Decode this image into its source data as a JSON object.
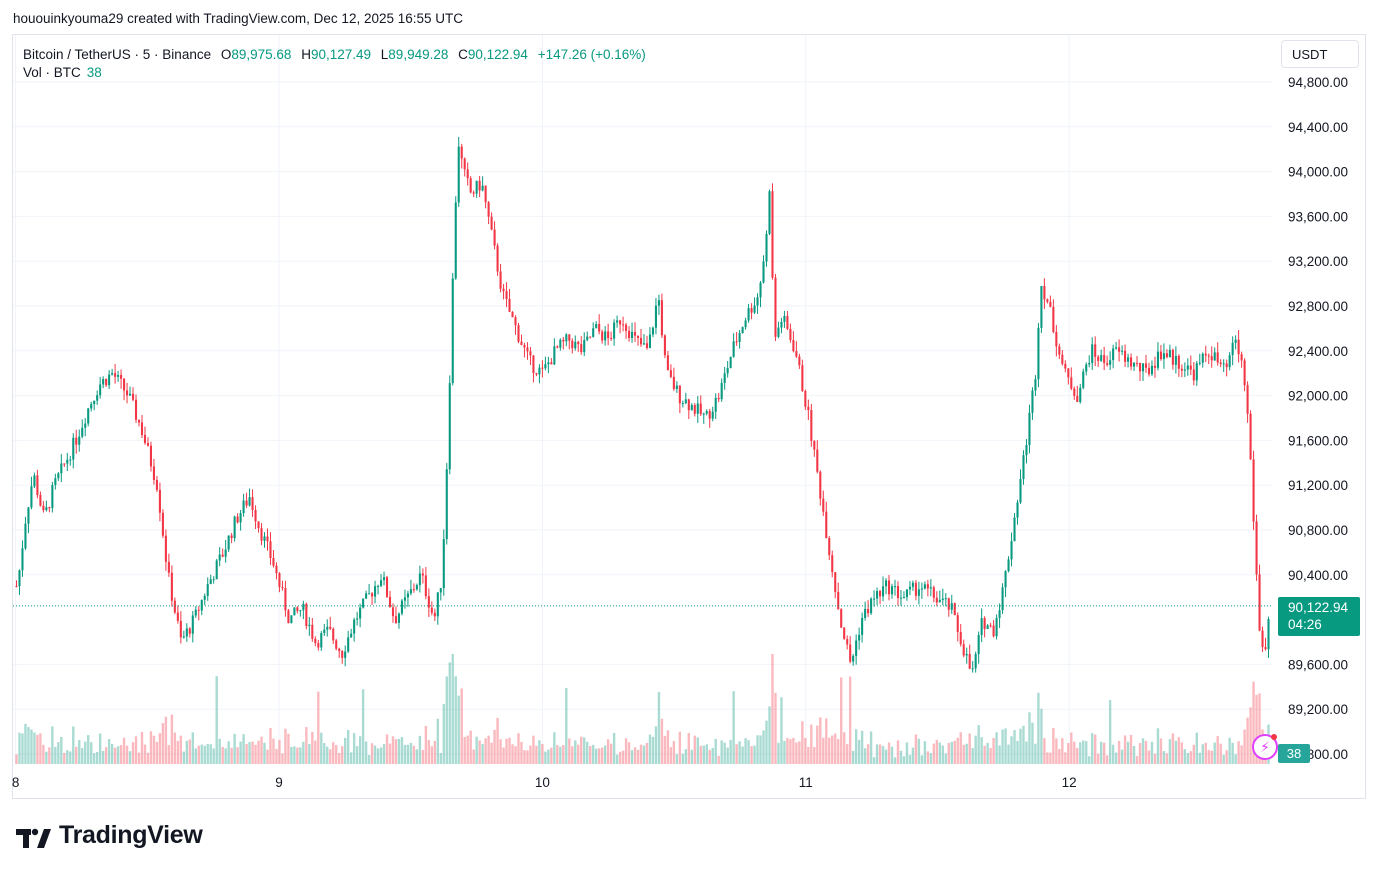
{
  "attribution": "hououinkyouma29 created with TradingView.com, Dec 12, 2025 16:55 UTC",
  "legend": {
    "symbol": "Bitcoin / TetherUS · 5 · Binance",
    "open_label": "O",
    "open": "89,975.68",
    "high_label": "H",
    "high": "90,127.49",
    "low_label": "L",
    "low": "89,949.28",
    "close_label": "C",
    "close": "90,122.94",
    "change": "+147.26 (+0.16%)"
  },
  "volume": {
    "label": "Vol · BTC",
    "value": "38"
  },
  "currency": "USDT",
  "last_price": {
    "price": "90,122.94",
    "countdown": "04:26"
  },
  "brand": "TradingView",
  "colors": {
    "up": "#089981",
    "down": "#f23645",
    "grid": "#f0f3fa",
    "text": "#131722"
  },
  "icons": {
    "alert": "lightning-bolt-icon",
    "logo": "tradingview-logo-icon"
  },
  "chart_data": {
    "type": "candlestick",
    "ylim": [
      88800,
      95000
    ],
    "y_ticks": [
      {
        "value": 94800,
        "label": "94,800.00"
      },
      {
        "value": 94400,
        "label": "94,400.00"
      },
      {
        "value": 94000,
        "label": "94,000.00"
      },
      {
        "value": 93600,
        "label": "93,600.00"
      },
      {
        "value": 93200,
        "label": "93,200.00"
      },
      {
        "value": 92800,
        "label": "92,800.00"
      },
      {
        "value": 92400,
        "label": "92,400.00"
      },
      {
        "value": 92000,
        "label": "92,000.00"
      },
      {
        "value": 91600,
        "label": "91,600.00"
      },
      {
        "value": 91200,
        "label": "91,200.00"
      },
      {
        "value": 90800,
        "label": "90,800.00"
      },
      {
        "value": 90400,
        "label": "90,400.00"
      },
      {
        "value": 89600,
        "label": "89,600.00"
      },
      {
        "value": 89200,
        "label": "89,200.00"
      },
      {
        "value": 88800,
        "label": "88,800.00"
      }
    ],
    "x_ticks": [
      {
        "day": 8,
        "label": "8"
      },
      {
        "day": 9,
        "label": "9"
      },
      {
        "day": 10,
        "label": "10"
      },
      {
        "day": 11,
        "label": "11"
      },
      {
        "day": 12,
        "label": "12"
      }
    ],
    "x_range_days": [
      7.99,
      12.77
    ],
    "current_price": 90122.94,
    "path": [
      [
        8.0,
        90300
      ],
      [
        8.03,
        90900
      ],
      [
        8.06,
        91300
      ],
      [
        8.1,
        90900
      ],
      [
        8.14,
        91200
      ],
      [
        8.18,
        91400
      ],
      [
        8.22,
        91600
      ],
      [
        8.27,
        91900
      ],
      [
        8.31,
        92100
      ],
      [
        8.36,
        92200
      ],
      [
        8.42,
        92000
      ],
      [
        8.47,
        91700
      ],
      [
        8.53,
        91200
      ],
      [
        8.57,
        90400
      ],
      [
        8.62,
        89800
      ],
      [
        8.67,
        90000
      ],
      [
        8.72,
        90300
      ],
      [
        8.78,
        90600
      ],
      [
        8.83,
        90900
      ],
      [
        8.88,
        91100
      ],
      [
        8.92,
        90800
      ],
      [
        8.97,
        90500
      ],
      [
        9.03,
        90000
      ],
      [
        9.08,
        90100
      ],
      [
        9.13,
        89800
      ],
      [
        9.18,
        89900
      ],
      [
        9.23,
        89700
      ],
      [
        9.28,
        90000
      ],
      [
        9.33,
        90200
      ],
      [
        9.38,
        90400
      ],
      [
        9.43,
        90000
      ],
      [
        9.48,
        90200
      ],
      [
        9.53,
        90400
      ],
      [
        9.58,
        90000
      ],
      [
        9.61,
        90400
      ],
      [
        9.63,
        91500
      ],
      [
        9.65,
        93000
      ],
      [
        9.67,
        94300
      ],
      [
        9.69,
        94000
      ],
      [
        9.72,
        93800
      ],
      [
        9.76,
        93900
      ],
      [
        9.8,
        93400
      ],
      [
        9.84,
        92900
      ],
      [
        9.89,
        92600
      ],
      [
        9.94,
        92300
      ],
      [
        9.99,
        92200
      ],
      [
        10.04,
        92400
      ],
      [
        10.09,
        92500
      ],
      [
        10.14,
        92400
      ],
      [
        10.19,
        92600
      ],
      [
        10.24,
        92500
      ],
      [
        10.29,
        92700
      ],
      [
        10.34,
        92500
      ],
      [
        10.39,
        92400
      ],
      [
        10.43,
        92900
      ],
      [
        10.46,
        92200
      ],
      [
        10.51,
        92000
      ],
      [
        10.56,
        91900
      ],
      [
        10.61,
        91800
      ],
      [
        10.66,
        92000
      ],
      [
        10.71,
        92400
      ],
      [
        10.76,
        92700
      ],
      [
        10.81,
        92900
      ],
      [
        10.84,
        93400
      ],
      [
        10.85,
        94000
      ],
      [
        10.87,
        92500
      ],
      [
        10.9,
        92700
      ],
      [
        10.95,
        92400
      ],
      [
        11.0,
        91800
      ],
      [
        11.04,
        91200
      ],
      [
        11.08,
        90600
      ],
      [
        11.12,
        90000
      ],
      [
        11.16,
        89600
      ],
      [
        11.2,
        90000
      ],
      [
        11.25,
        90200
      ],
      [
        11.3,
        90300
      ],
      [
        11.36,
        90200
      ],
      [
        11.42,
        90300
      ],
      [
        11.48,
        90200
      ],
      [
        11.54,
        90100
      ],
      [
        11.58,
        89800
      ],
      [
        11.62,
        89500
      ],
      [
        11.66,
        90000
      ],
      [
        11.7,
        89900
      ],
      [
        11.74,
        90300
      ],
      [
        11.78,
        90900
      ],
      [
        11.82,
        91500
      ],
      [
        11.86,
        92200
      ],
      [
        11.88,
        93000
      ],
      [
        11.9,
        92900
      ],
      [
        11.93,
        92600
      ],
      [
        11.97,
        92200
      ],
      [
        12.02,
        92000
      ],
      [
        12.07,
        92400
      ],
      [
        12.12,
        92300
      ],
      [
        12.17,
        92400
      ],
      [
        12.22,
        92300
      ],
      [
        12.28,
        92200
      ],
      [
        12.34,
        92400
      ],
      [
        12.4,
        92300
      ],
      [
        12.46,
        92200
      ],
      [
        12.52,
        92400
      ],
      [
        12.58,
        92200
      ],
      [
        12.62,
        92500
      ],
      [
        12.65,
        92200
      ],
      [
        12.67,
        91700
      ],
      [
        12.69,
        90800
      ],
      [
        12.71,
        89900
      ],
      [
        12.73,
        89700
      ],
      [
        12.75,
        90100
      ]
    ]
  }
}
